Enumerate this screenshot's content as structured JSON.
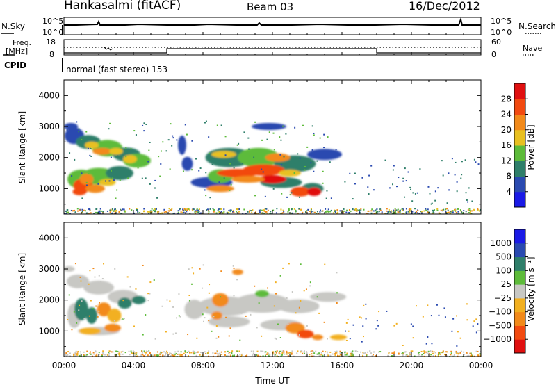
{
  "header": {
    "title_left": "Hankasalmi (fitACF)",
    "title_mid": "Beam 03",
    "title_right": "16/Dec/2012"
  },
  "top_panels": {
    "nsky_label": "N.Sky",
    "nsearch_label": "N.Search",
    "freq_label_1": "Freq.",
    "freq_label_2": "[MHz]",
    "nave_label": "Nave",
    "cpid_label": "CPID",
    "cpid_text": "normal (fast stereo) 153",
    "noise_ticks_left": [
      "10^5",
      "10^0"
    ],
    "noise_ticks_right": [
      "10^5",
      "10^0"
    ],
    "freq_ticks_left": [
      "18",
      "8"
    ],
    "nave_ticks_right": [
      "60",
      "0"
    ]
  },
  "chart_data": [
    {
      "type": "heatmap",
      "ylabel": "Slant Range [km]",
      "xlabel": "",
      "y_ticks": [
        1000,
        2000,
        3000,
        4000
      ],
      "ylim": [
        180,
        4500
      ],
      "xlim": [
        0,
        24
      ],
      "colorbar_label": "Power [dB]",
      "colorbar_ticks": [
        "4",
        "8",
        "12",
        "16",
        "20",
        "24",
        "28"
      ],
      "colorbar_colors": [
        "#1a1ae6",
        "#2a4ab0",
        "#2f7f6a",
        "#5dbb3a",
        "#e8c020",
        "#f28a1a",
        "#f24a10",
        "#e01010"
      ]
    },
    {
      "type": "heatmap",
      "ylabel": "Slant Range [km]",
      "xlabel": "Time UT",
      "x_ticks": [
        "00:00",
        "04:00",
        "08:00",
        "12:00",
        "16:00",
        "20:00",
        "00:00"
      ],
      "y_ticks": [
        1000,
        2000,
        3000,
        4000
      ],
      "ylim": [
        180,
        4500
      ],
      "xlim": [
        0,
        24
      ],
      "colorbar_label": "Velocity [m s⁻¹]",
      "colorbar_ticks": [
        "1000",
        "500",
        "100",
        "25",
        "−25",
        "−100",
        "−500",
        "−1000"
      ],
      "colorbar_colors": [
        "#1a1ae6",
        "#2a4ab0",
        "#2f7f6a",
        "#5dbb3a",
        "#c8c8c4",
        "#f2b020",
        "#f28a1a",
        "#f24a10",
        "#e01010"
      ]
    }
  ]
}
